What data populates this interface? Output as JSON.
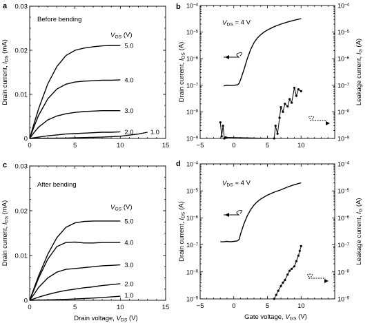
{
  "chart_data": [
    {
      "panel": "a",
      "type": "line",
      "annotation": "Before bending",
      "legend_title": "VGS (V)",
      "xlabel": "",
      "ylabel": "Drain current, IDS (mA)",
      "xlim": [
        0,
        15
      ],
      "ylim": [
        0,
        0.03
      ],
      "xticks": [
        "0",
        "5",
        "10",
        "15"
      ],
      "yticks": [
        "0",
        "0.01",
        "0.02",
        "0.03"
      ],
      "series": [
        {
          "name": "5.0",
          "x": [
            0,
            0.5,
            1,
            2,
            3,
            4,
            5,
            6,
            7,
            8,
            9,
            10
          ],
          "y": [
            0,
            0.0035,
            0.0068,
            0.0124,
            0.0163,
            0.0188,
            0.02,
            0.0205,
            0.0208,
            0.021,
            0.0211,
            0.0211
          ]
        },
        {
          "name": "4.0",
          "x": [
            0,
            0.5,
            1,
            2,
            3,
            4,
            5,
            6,
            7,
            8,
            9,
            10
          ],
          "y": [
            0,
            0.0028,
            0.0053,
            0.009,
            0.0112,
            0.0123,
            0.0128,
            0.013,
            0.0131,
            0.0132,
            0.0132,
            0.0133
          ]
        },
        {
          "name": "3.0",
          "x": [
            0,
            0.5,
            1,
            2,
            3,
            4,
            5,
            6,
            7,
            8,
            9,
            10
          ],
          "y": [
            0,
            0.0014,
            0.0026,
            0.0042,
            0.0051,
            0.0056,
            0.0059,
            0.0061,
            0.0062,
            0.0063,
            0.0063,
            0.0063
          ]
        },
        {
          "name": "2.0",
          "x": [
            0,
            1,
            2,
            3,
            4,
            5,
            6,
            7,
            8,
            9,
            10
          ],
          "y": [
            0,
            0.0003,
            0.0006,
            0.0008,
            0.001,
            0.0011,
            0.0012,
            0.0013,
            0.0014,
            0.0014,
            0.0015
          ]
        },
        {
          "name": "1.0",
          "x": [
            0,
            2,
            4,
            6,
            8,
            10,
            12,
            13
          ],
          "y": [
            0,
            5e-05,
            0.0001,
            0.0002,
            0.0003,
            0.0005,
            0.001,
            0.0014
          ]
        }
      ]
    },
    {
      "panel": "b",
      "type": "line",
      "annotation": "VDS = 4 V",
      "xlabel": "",
      "ylabel": "Drain current, IDS (A)",
      "y2label": "Leakage current, IG (A)",
      "xlim": [
        -5,
        15
      ],
      "ylim": [
        1e-09,
        0.0001
      ],
      "yscale": "log",
      "xticks": [
        "−5",
        "0",
        "5",
        "10"
      ],
      "yticks": [
        "10−9",
        "10−8",
        "10−7",
        "10−6",
        "10−5",
        "10−4"
      ],
      "series": [
        {
          "name": "IDS",
          "x": [
            -1.5,
            -1,
            -0.5,
            0,
            0.3,
            0.6,
            0.8,
            1,
            1.5,
            2,
            2.5,
            3,
            3.5,
            4,
            4.5,
            5,
            6,
            7,
            8,
            9,
            10
          ],
          "y": [
            9.5e-08,
            1e-07,
            9.8e-08,
            1e-07,
            1.02e-07,
            1.05e-07,
            1.2e-07,
            1.6e-07,
            3.8e-07,
            1e-06,
            2.2e-06,
            4e-06,
            6e-06,
            8e-06,
            1e-05,
            1.2e-05,
            1.6e-05,
            2e-05,
            2.4e-05,
            2.8e-05,
            3.2e-05
          ]
        },
        {
          "name": "IG",
          "x": [
            -2,
            -1.8,
            -1.6,
            -1.4,
            -1.2,
            6,
            6.2,
            6.5,
            6.8,
            7,
            7.3,
            7.6,
            8,
            8.3,
            8.6,
            9,
            9.3,
            9.6,
            10
          ],
          "y": [
            4e-09,
            1.2e-09,
            3e-09,
            1e-09,
            1.1e-09,
            1e-09,
            3e-09,
            1.5e-09,
            6e-09,
            1.5e-08,
            1e-08,
            2e-08,
            1.6e-08,
            3e-08,
            2.2e-08,
            8e-08,
            4e-08,
            7e-08,
            6e-08
          ]
        }
      ]
    },
    {
      "panel": "c",
      "type": "line",
      "annotation": "After bending",
      "legend_title": "VGS (V)",
      "xlabel": "Drain voltage, VDS (V)",
      "ylabel": "Drain current, IDS (mA)",
      "xlim": [
        0,
        15
      ],
      "ylim": [
        0,
        0.03
      ],
      "xticks": [
        "0",
        "5",
        "10",
        "15"
      ],
      "yticks": [
        "0",
        "0.01",
        "0.02",
        "0.03"
      ],
      "series": [
        {
          "name": "5.0",
          "x": [
            0,
            0.5,
            1,
            2,
            3,
            4,
            5,
            6,
            7,
            8,
            9,
            10
          ],
          "y": [
            0,
            0.0028,
            0.0055,
            0.0103,
            0.014,
            0.0163,
            0.0173,
            0.0176,
            0.0177,
            0.0177,
            0.0177,
            0.0177
          ]
        },
        {
          "name": "4.0",
          "x": [
            0,
            0.5,
            1,
            2,
            3,
            4,
            5,
            6,
            7,
            8,
            9,
            10
          ],
          "y": [
            0,
            0.0025,
            0.005,
            0.0092,
            0.012,
            0.0129,
            0.013,
            0.0128,
            0.0128,
            0.0129,
            0.0129,
            0.0129
          ]
        },
        {
          "name": "3.0",
          "x": [
            0,
            0.5,
            1,
            2,
            3,
            4,
            5,
            6,
            7,
            8,
            9,
            10
          ],
          "y": [
            0,
            0.0014,
            0.0029,
            0.005,
            0.0063,
            0.0069,
            0.0071,
            0.0073,
            0.0075,
            0.0077,
            0.0078,
            0.0079
          ]
        },
        {
          "name": "2.0",
          "x": [
            0,
            1,
            2,
            3,
            4,
            5,
            6,
            7,
            8,
            9,
            10
          ],
          "y": [
            0,
            0.0007,
            0.0013,
            0.0018,
            0.0022,
            0.0025,
            0.0028,
            0.003,
            0.0033,
            0.0035,
            0.0037
          ]
        },
        {
          "name": "1.0",
          "x": [
            0,
            2,
            4,
            6,
            8,
            10
          ],
          "y": [
            0,
            0.0001,
            0.0002,
            0.0004,
            0.0006,
            0.0009
          ]
        }
      ]
    },
    {
      "panel": "d",
      "type": "line",
      "annotation": "VDS = 4 V",
      "xlabel": "Gate voltage, VGS (V)",
      "ylabel": "Drain current, IDS (A)",
      "y2label": "Leakage current, IG (A)",
      "xlim": [
        -5,
        15
      ],
      "ylim": [
        1e-09,
        0.0001
      ],
      "yscale": "log",
      "xticks": [
        "−5",
        "0",
        "5",
        "10"
      ],
      "yticks": [
        "10−9",
        "10−8",
        "10−7",
        "10−6",
        "10−5",
        "10−4"
      ],
      "series": [
        {
          "name": "IDS",
          "x": [
            -2,
            -1.5,
            -1,
            -0.5,
            0,
            0.5,
            0.8,
            1,
            1.5,
            2,
            2.5,
            3,
            3.5,
            4,
            5,
            6,
            7,
            8,
            9,
            10
          ],
          "y": [
            1.3e-07,
            1.3e-07,
            1.35e-07,
            1.3e-07,
            1.35e-07,
            1.4e-07,
            1.6e-07,
            2.5e-07,
            6e-07,
            1.2e-06,
            2e-06,
            3e-06,
            4e-06,
            5e-06,
            7e-06,
            9e-06,
            1.1e-05,
            1.4e-05,
            1.7e-05,
            2e-05
          ]
        },
        {
          "name": "IG",
          "x": [
            6,
            6.3,
            6.6,
            7,
            7.3,
            7.6,
            8,
            8.3,
            8.6,
            9,
            9.3,
            9.6,
            9.8,
            10
          ],
          "y": [
            1e-09,
            1.4e-09,
            2e-09,
            3e-09,
            4e-09,
            5e-09,
            8e-09,
            1.1e-08,
            1.3e-08,
            1.6e-08,
            2.5e-08,
            4e-08,
            6e-08,
            9e-08
          ]
        }
      ]
    }
  ],
  "labels": {
    "panel_a": "a",
    "panel_b": "b",
    "panel_c": "c",
    "panel_d": "d"
  }
}
